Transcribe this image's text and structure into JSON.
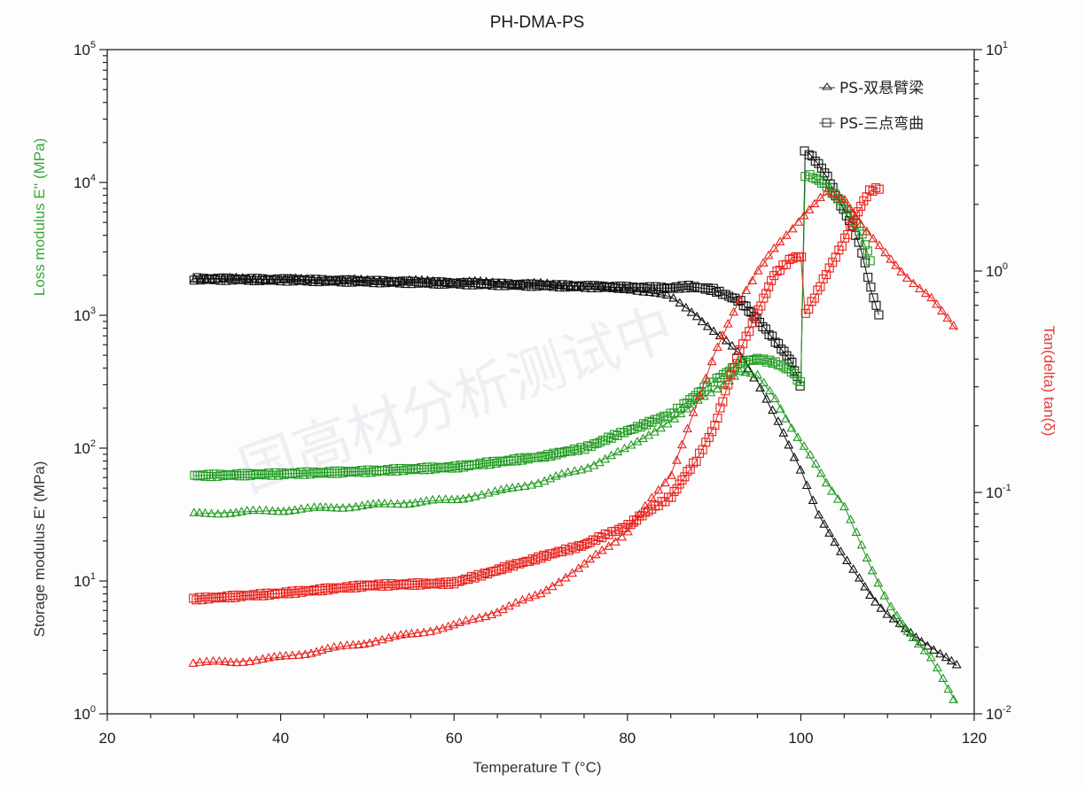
{
  "chart_data": {
    "type": "scatter",
    "title": "PH-DMA-PS",
    "xlabel": "Temperature T (°C)",
    "ylabel_left_top": "Loss modulus E'' (MPa)",
    "ylabel_left_bottom": "Storage modulus E' (MPa)",
    "ylabel_right": "Tan(delta) tan(δ)",
    "xlim": [
      20,
      120
    ],
    "ylim_left": [
      1,
      100000
    ],
    "ylim_right": [
      0.01,
      10
    ],
    "yscale_left": "log",
    "yscale_right": "log",
    "grid": false,
    "legend_position": "upper right",
    "x_ticks": [
      20,
      40,
      60,
      80,
      100,
      120
    ],
    "y_left_ticks": [
      {
        "base": "10",
        "exp": "0"
      },
      {
        "base": "10",
        "exp": "1"
      },
      {
        "base": "10",
        "exp": "2"
      },
      {
        "base": "10",
        "exp": "3"
      },
      {
        "base": "10",
        "exp": "4"
      },
      {
        "base": "10",
        "exp": "5"
      }
    ],
    "y_right_ticks": [
      {
        "base": "10",
        "exp": "-2"
      },
      {
        "base": "10",
        "exp": "-1"
      },
      {
        "base": "10",
        "exp": "0"
      },
      {
        "base": "10",
        "exp": "1"
      }
    ],
    "legend": [
      {
        "label": "PS-双悬臂梁",
        "marker": "triangle",
        "meaning": "dual cantilever"
      },
      {
        "label": "PS-三点弯曲",
        "marker": "square",
        "meaning": "three-point bending"
      }
    ],
    "watermark": "国高材分析测试中",
    "series": [
      {
        "name": "PS-三点弯曲 Storage modulus E'",
        "axis": "left",
        "marker": "square",
        "color": "#111111",
        "x": [
          30,
          40,
          50,
          60,
          70,
          80,
          85,
          87,
          90,
          93,
          95,
          97,
          99,
          100,
          100.5,
          101,
          102,
          103,
          104,
          105,
          106,
          107,
          108,
          109
        ],
        "y": [
          1880,
          1850,
          1800,
          1740,
          1680,
          1620,
          1600,
          1650,
          1560,
          1270,
          940,
          640,
          440,
          300,
          16900,
          16500,
          13800,
          11000,
          8100,
          6200,
          4700,
          3000,
          1600,
          1010
        ]
      },
      {
        "name": "PS-双悬臂梁 Storage modulus E'",
        "axis": "left",
        "marker": "triangle",
        "color": "#111111",
        "x": [
          30,
          40,
          50,
          60,
          70,
          80,
          85,
          88,
          90,
          93,
          95,
          97,
          100,
          102,
          105,
          108,
          110,
          112,
          115,
          118
        ],
        "y": [
          1900,
          1870,
          1830,
          1800,
          1720,
          1600,
          1380,
          1000,
          750,
          510,
          320,
          173,
          69,
          32,
          15,
          8,
          5.6,
          4.3,
          3.2,
          2.3
        ]
      },
      {
        "name": "PS-三点弯曲 Loss modulus E''",
        "axis": "left",
        "marker": "square",
        "color": "#1f9a1f",
        "x": [
          30,
          40,
          50,
          60,
          70,
          75,
          80,
          85,
          90,
          93,
          95,
          97,
          99,
          100,
          100.5,
          101,
          103,
          105,
          107,
          108
        ],
        "y": [
          62,
          64,
          67,
          72,
          86,
          100,
          135,
          180,
          320,
          440,
          470,
          440,
          380,
          310,
          11300,
          11300,
          9400,
          6900,
          4000,
          2600
        ]
      },
      {
        "name": "PS-双悬臂梁 Loss modulus E''",
        "axis": "left",
        "marker": "triangle",
        "color": "#1f9a1f",
        "x": [
          30,
          40,
          50,
          60,
          65,
          70,
          75,
          80,
          85,
          90,
          93,
          95,
          97,
          100,
          103,
          105,
          108,
          110,
          112,
          115,
          118
        ],
        "y": [
          32,
          34,
          37,
          41,
          47,
          56,
          70,
          100,
          160,
          275,
          375,
          350,
          240,
          110,
          55,
          37,
          13,
          7,
          4.5,
          2.6,
          1.2
        ]
      },
      {
        "name": "PS-三点弯曲 tan(δ)",
        "axis": "right",
        "marker": "square",
        "color": "#e8201a",
        "x": [
          30,
          40,
          50,
          60,
          70,
          75,
          80,
          85,
          88,
          90,
          93,
          95,
          97,
          99,
          100,
          100.5,
          102,
          104,
          106,
          108,
          109
        ],
        "y": [
          0.033,
          0.035,
          0.038,
          0.039,
          0.051,
          0.058,
          0.071,
          0.096,
          0.14,
          0.2,
          0.44,
          0.66,
          0.96,
          1.15,
          1.16,
          0.64,
          0.81,
          1.16,
          1.67,
          2.3,
          2.37
        ]
      },
      {
        "name": "PS-双悬臂梁 tan(δ)",
        "axis": "right",
        "marker": "triangle",
        "color": "#e8201a",
        "x": [
          30,
          35,
          40,
          50,
          60,
          65,
          70,
          75,
          80,
          85,
          88,
          90,
          93,
          95,
          98,
          100,
          103,
          105,
          108,
          110,
          112,
          115,
          118
        ],
        "y": [
          0.017,
          0.0172,
          0.018,
          0.021,
          0.025,
          0.029,
          0.035,
          0.047,
          0.067,
          0.12,
          0.25,
          0.42,
          0.75,
          1.0,
          1.4,
          1.75,
          2.25,
          2.1,
          1.46,
          1.15,
          0.96,
          0.76,
          0.54
        ]
      }
    ]
  }
}
